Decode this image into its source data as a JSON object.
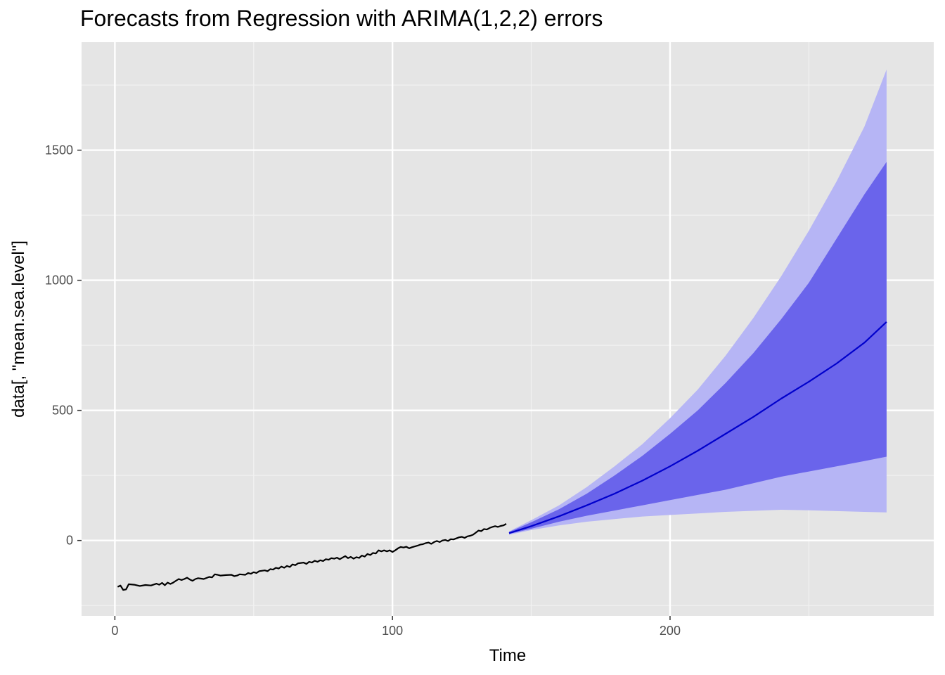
{
  "chart_data": {
    "type": "line",
    "title": "Forecasts from Regression with ARIMA(1,2,2) errors",
    "xlabel": "Time",
    "ylabel": "data[, \"mean.sea.level\"]",
    "xlim": [
      -12,
      295
    ],
    "ylim": [
      -290,
      1915
    ],
    "x_ticks": [
      0,
      100,
      200
    ],
    "y_ticks": [
      0,
      500,
      1000,
      1500
    ],
    "grid": true,
    "background": "#E5E5E5",
    "history": {
      "color": "#000000",
      "points": [
        [
          1,
          -178
        ],
        [
          2,
          -173
        ],
        [
          3,
          -190
        ],
        [
          4,
          -188
        ],
        [
          5,
          -168
        ],
        [
          7,
          -170
        ],
        [
          9,
          -175
        ],
        [
          11,
          -171
        ],
        [
          13,
          -173
        ],
        [
          15,
          -166
        ],
        [
          16,
          -170
        ],
        [
          17,
          -163
        ],
        [
          18,
          -172
        ],
        [
          19,
          -162
        ],
        [
          20,
          -167
        ],
        [
          21,
          -162
        ],
        [
          22,
          -155
        ],
        [
          23,
          -148
        ],
        [
          24,
          -152
        ],
        [
          25,
          -148
        ],
        [
          26,
          -143
        ],
        [
          27,
          -150
        ],
        [
          28,
          -155
        ],
        [
          29,
          -148
        ],
        [
          30,
          -145
        ],
        [
          32,
          -148
        ],
        [
          34,
          -140
        ],
        [
          35,
          -142
        ],
        [
          36,
          -130
        ],
        [
          37,
          -132
        ],
        [
          38,
          -135
        ],
        [
          40,
          -133
        ],
        [
          42,
          -132
        ],
        [
          43,
          -137
        ],
        [
          44,
          -135
        ],
        [
          45,
          -130
        ],
        [
          47,
          -132
        ],
        [
          48,
          -125
        ],
        [
          49,
          -128
        ],
        [
          50,
          -122
        ],
        [
          51,
          -125
        ],
        [
          52,
          -118
        ],
        [
          54,
          -115
        ],
        [
          55,
          -118
        ],
        [
          56,
          -110
        ],
        [
          57,
          -112
        ],
        [
          58,
          -105
        ],
        [
          59,
          -108
        ],
        [
          60,
          -100
        ],
        [
          61,
          -105
        ],
        [
          62,
          -98
        ],
        [
          63,
          -102
        ],
        [
          64,
          -92
        ],
        [
          65,
          -95
        ],
        [
          66,
          -88
        ],
        [
          68,
          -85
        ],
        [
          69,
          -90
        ],
        [
          70,
          -82
        ],
        [
          71,
          -85
        ],
        [
          72,
          -78
        ],
        [
          73,
          -82
        ],
        [
          74,
          -76
        ],
        [
          75,
          -79
        ],
        [
          76,
          -72
        ],
        [
          77,
          -74
        ],
        [
          78,
          -68
        ],
        [
          79,
          -70
        ],
        [
          80,
          -66
        ],
        [
          81,
          -72
        ],
        [
          82,
          -66
        ],
        [
          83,
          -60
        ],
        [
          84,
          -68
        ],
        [
          85,
          -63
        ],
        [
          86,
          -70
        ],
        [
          87,
          -64
        ],
        [
          88,
          -67
        ],
        [
          89,
          -58
        ],
        [
          90,
          -62
        ],
        [
          91,
          -52
        ],
        [
          92,
          -56
        ],
        [
          93,
          -48
        ],
        [
          94,
          -50
        ],
        [
          95,
          -38
        ],
        [
          96,
          -42
        ],
        [
          97,
          -38
        ],
        [
          98,
          -42
        ],
        [
          99,
          -38
        ],
        [
          100,
          -44
        ],
        [
          101,
          -38
        ],
        [
          102,
          -30
        ],
        [
          103,
          -25
        ],
        [
          104,
          -27
        ],
        [
          105,
          -24
        ],
        [
          106,
          -30
        ],
        [
          107,
          -26
        ],
        [
          108,
          -23
        ],
        [
          109,
          -20
        ],
        [
          110,
          -16
        ],
        [
          111,
          -14
        ],
        [
          112,
          -10
        ],
        [
          113,
          -8
        ],
        [
          114,
          -13
        ],
        [
          115,
          -6
        ],
        [
          116,
          -2
        ],
        [
          117,
          -6
        ],
        [
          118,
          0
        ],
        [
          119,
          2
        ],
        [
          120,
          -2
        ],
        [
          121,
          5
        ],
        [
          122,
          4
        ],
        [
          123,
          8
        ],
        [
          124,
          12
        ],
        [
          125,
          14
        ],
        [
          126,
          10
        ],
        [
          127,
          16
        ],
        [
          128,
          18
        ],
        [
          129,
          22
        ],
        [
          130,
          30
        ],
        [
          131,
          38
        ],
        [
          132,
          36
        ],
        [
          133,
          44
        ],
        [
          134,
          42
        ],
        [
          135,
          48
        ],
        [
          136,
          52
        ],
        [
          137,
          55
        ],
        [
          138,
          52
        ],
        [
          139,
          56
        ],
        [
          140,
          58
        ],
        [
          141,
          64
        ]
      ]
    },
    "forecast": {
      "color": "#0000CC",
      "band80_color": "#6A64EB",
      "band95_color": "#B6B5F5",
      "x": [
        142,
        150,
        160,
        170,
        180,
        190,
        200,
        210,
        220,
        230,
        240,
        250,
        260,
        270,
        278
      ],
      "mean": [
        28,
        55,
        93,
        135,
        180,
        230,
        285,
        345,
        410,
        475,
        545,
        610,
        680,
        760,
        840
      ],
      "lower80": [
        25,
        45,
        72,
        95,
        115,
        135,
        155,
        175,
        195,
        220,
        245,
        265,
        285,
        305,
        322
      ],
      "upper80": [
        33,
        70,
        120,
        180,
        250,
        325,
        410,
        500,
        605,
        720,
        850,
        990,
        1160,
        1330,
        1455
      ],
      "lower95": [
        22,
        40,
        58,
        72,
        82,
        92,
        98,
        104,
        110,
        114,
        118,
        116,
        113,
        110,
        108
      ],
      "upper95": [
        35,
        78,
        135,
        205,
        285,
        370,
        470,
        580,
        710,
        855,
        1015,
        1190,
        1380,
        1590,
        1810
      ]
    }
  }
}
